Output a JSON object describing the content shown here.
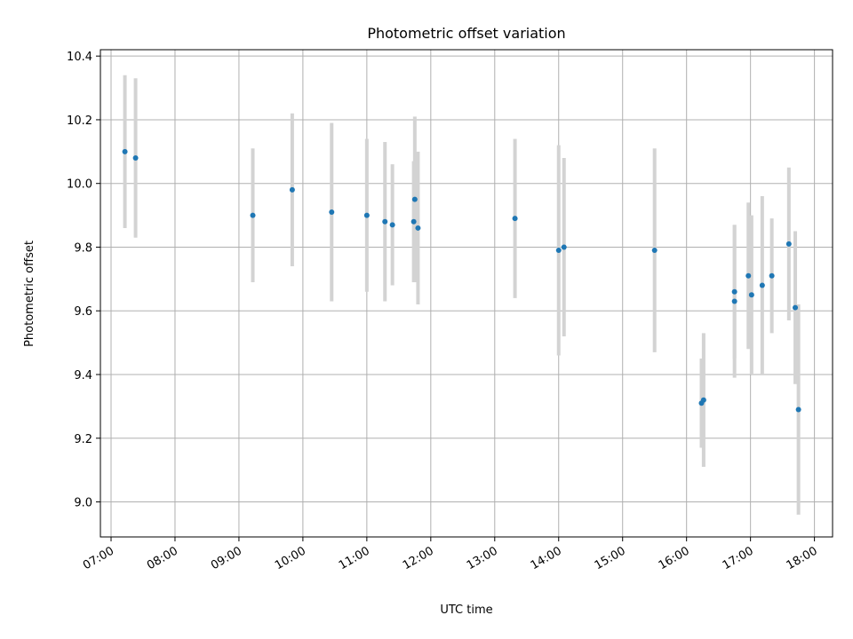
{
  "chart_data": {
    "type": "scatter",
    "title": "Photometric offset variation",
    "xlabel": "UTC time",
    "ylabel": "Photometric offset",
    "x_unit": "time-of-day",
    "xlim": [
      "06:50",
      "18:17"
    ],
    "ylim": [
      8.89,
      10.42
    ],
    "x_ticks": [
      "07:00",
      "08:00",
      "09:00",
      "10:00",
      "11:00",
      "12:00",
      "13:00",
      "14:00",
      "15:00",
      "16:00",
      "17:00",
      "18:00"
    ],
    "y_ticks": [
      9.0,
      9.2,
      9.4,
      9.6,
      9.8,
      10.0,
      10.2,
      10.4
    ],
    "grid": true,
    "colors": {
      "point": "#1f77b4",
      "error_bar": "#d3d3d3"
    },
    "series": [
      {
        "points": [
          {
            "x": "07:13",
            "y": 10.1,
            "err": 0.24
          },
          {
            "x": "07:23",
            "y": 10.08,
            "err": 0.25
          },
          {
            "x": "09:13",
            "y": 9.9,
            "err": 0.21
          },
          {
            "x": "09:50",
            "y": 9.98,
            "err": 0.24
          },
          {
            "x": "10:27",
            "y": 9.91,
            "err": 0.28
          },
          {
            "x": "11:00",
            "y": 9.9,
            "err": 0.24
          },
          {
            "x": "11:17",
            "y": 9.88,
            "err": 0.25
          },
          {
            "x": "11:24",
            "y": 9.87,
            "err": 0.19
          },
          {
            "x": "11:44",
            "y": 9.88,
            "err": 0.19
          },
          {
            "x": "11:45",
            "y": 9.95,
            "err": 0.26
          },
          {
            "x": "11:48",
            "y": 9.86,
            "err": 0.24
          },
          {
            "x": "13:19",
            "y": 9.89,
            "err": 0.25
          },
          {
            "x": "14:00",
            "y": 9.79,
            "err": 0.33
          },
          {
            "x": "14:05",
            "y": 9.8,
            "err": 0.28
          },
          {
            "x": "15:30",
            "y": 9.79,
            "err": 0.32
          },
          {
            "x": "16:14",
            "y": 9.31,
            "err": 0.14
          },
          {
            "x": "16:16",
            "y": 9.32,
            "err": 0.21
          },
          {
            "x": "16:45",
            "y": 9.66,
            "err": 0.21
          },
          {
            "x": "16:45",
            "y": 9.63,
            "err": 0.24
          },
          {
            "x": "16:58",
            "y": 9.71,
            "err": 0.23
          },
          {
            "x": "17:01",
            "y": 9.65,
            "err": 0.25
          },
          {
            "x": "17:11",
            "y": 9.68,
            "err": 0.28
          },
          {
            "x": "17:20",
            "y": 9.71,
            "err": 0.18
          },
          {
            "x": "17:36",
            "y": 9.81,
            "err": 0.24
          },
          {
            "x": "17:42",
            "y": 9.61,
            "err": 0.24
          },
          {
            "x": "17:45",
            "y": 9.29,
            "err": 0.33
          }
        ]
      }
    ]
  }
}
